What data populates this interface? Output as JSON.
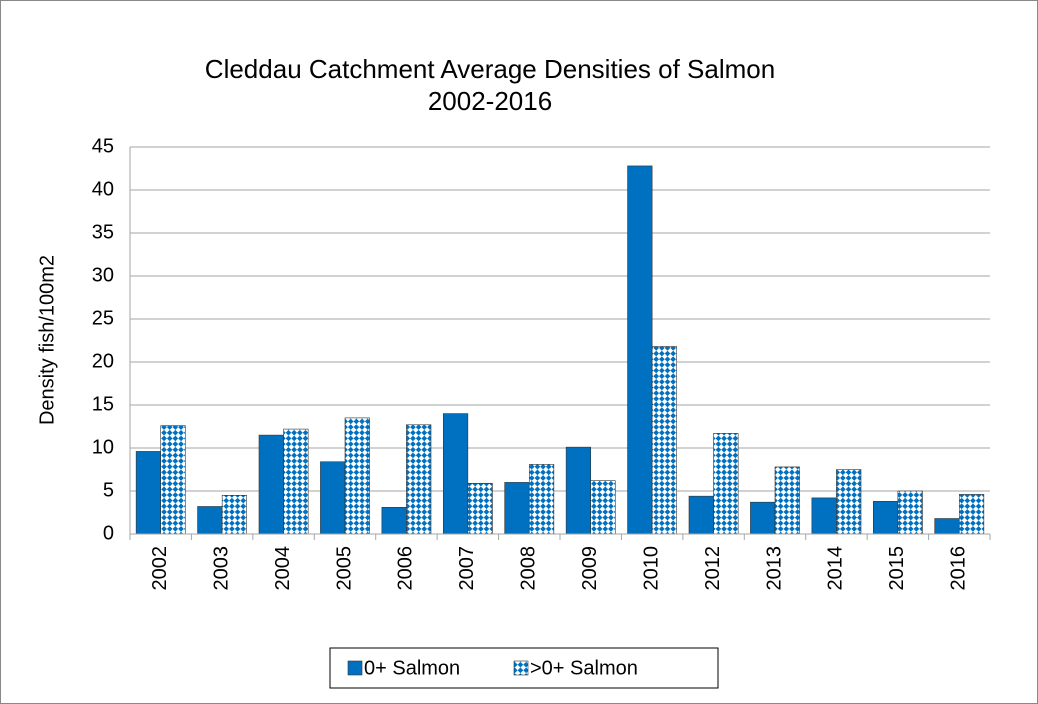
{
  "chart_data": {
    "type": "bar",
    "title": [
      "Cleddau Catchment Average Densities of Salmon",
      "2002-2016"
    ],
    "y_label": "Density fish/100m2",
    "categories": [
      "2002",
      "2003",
      "2004",
      "2005",
      "2006",
      "2007",
      "2008",
      "2009",
      "2010",
      "2012",
      "2013",
      "2014",
      "2015",
      "2016"
    ],
    "series": [
      {
        "name": "0+ Salmon",
        "color": "#0070c0",
        "pattern": "solid",
        "values": [
          9.6,
          3.2,
          11.5,
          8.4,
          3.1,
          14.0,
          6.0,
          10.1,
          42.8,
          4.4,
          3.7,
          4.2,
          3.8,
          1.8
        ]
      },
      {
        "name": ">0+ Salmon",
        "color": "#0070c0",
        "pattern": "checker",
        "values": [
          12.6,
          4.5,
          12.2,
          13.5,
          12.7,
          5.9,
          8.1,
          6.2,
          21.8,
          11.7,
          7.8,
          7.5,
          5.0,
          4.6
        ]
      }
    ],
    "ylim": [
      0,
      45
    ],
    "yticks": [
      0,
      5,
      10,
      15,
      20,
      25,
      30,
      35,
      40,
      45
    ],
    "grid": true,
    "legend": "bottom"
  }
}
